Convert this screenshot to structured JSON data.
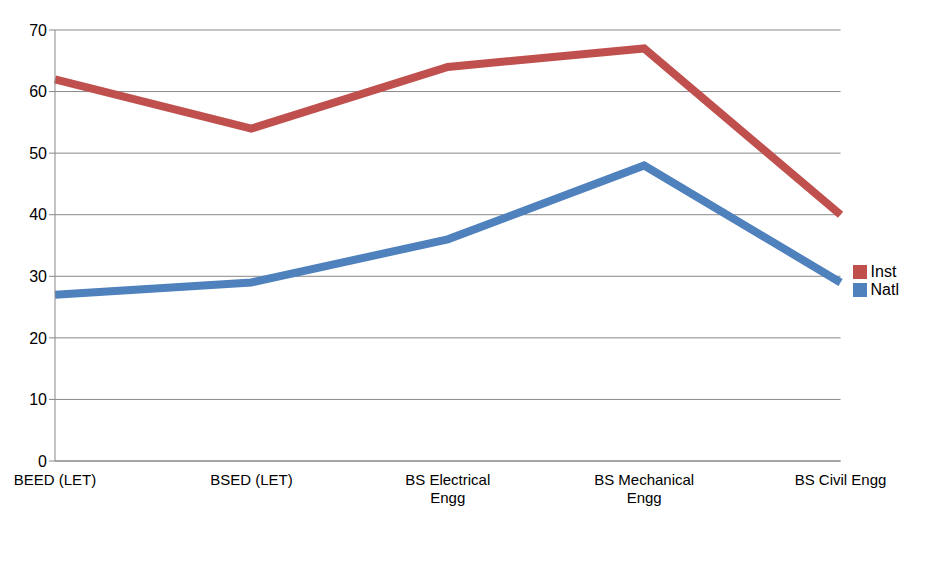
{
  "chart_data": {
    "type": "line",
    "categories": [
      "BEED (LET)",
      "BSED (LET)",
      "BS Electrical Engg",
      "BS Mechanical Engg",
      "BS Civil Engg"
    ],
    "series": [
      {
        "name": "Natl",
        "color": "#4f81bd",
        "values": [
          27,
          29,
          36,
          48,
          29
        ]
      },
      {
        "name": "Inst",
        "color": "#c0504d",
        "values": [
          62,
          54,
          64,
          67,
          40
        ]
      }
    ],
    "ylim": [
      0,
      70
    ],
    "yticks": [
      0,
      10,
      20,
      30,
      40,
      50,
      60,
      70
    ],
    "grid": true,
    "legend": "right"
  }
}
